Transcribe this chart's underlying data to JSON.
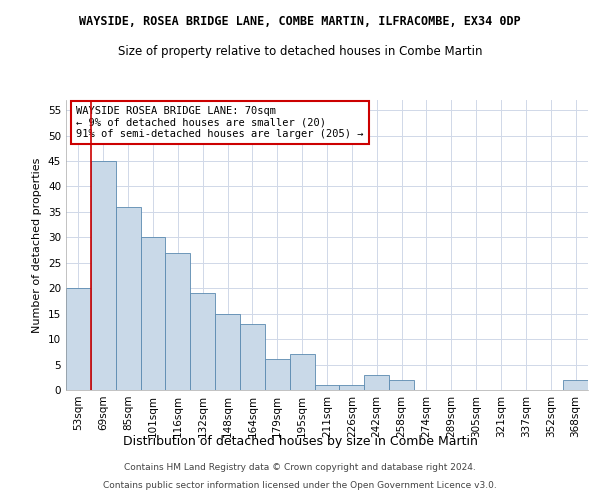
{
  "title": "WAYSIDE, ROSEA BRIDGE LANE, COMBE MARTIN, ILFRACOMBE, EX34 0DP",
  "subtitle": "Size of property relative to detached houses in Combe Martin",
  "xlabel": "Distribution of detached houses by size in Combe Martin",
  "ylabel": "Number of detached properties",
  "categories": [
    "53sqm",
    "69sqm",
    "85sqm",
    "101sqm",
    "116sqm",
    "132sqm",
    "148sqm",
    "164sqm",
    "179sqm",
    "195sqm",
    "211sqm",
    "226sqm",
    "242sqm",
    "258sqm",
    "274sqm",
    "289sqm",
    "305sqm",
    "321sqm",
    "337sqm",
    "352sqm",
    "368sqm"
  ],
  "values": [
    20,
    45,
    36,
    30,
    27,
    19,
    15,
    13,
    6,
    7,
    1,
    1,
    3,
    2,
    0,
    0,
    0,
    0,
    0,
    0,
    2
  ],
  "bar_color": "#c9d9e8",
  "bar_edge_color": "#5a8ab0",
  "ylim": [
    0,
    57
  ],
  "yticks": [
    0,
    5,
    10,
    15,
    20,
    25,
    30,
    35,
    40,
    45,
    50,
    55
  ],
  "vline_x_idx": 1,
  "vline_color": "#cc0000",
  "annotation_text": "WAYSIDE ROSEA BRIDGE LANE: 70sqm\n← 9% of detached houses are smaller (20)\n91% of semi-detached houses are larger (205) →",
  "annotation_box_color": "#ffffff",
  "annotation_box_edge": "#cc0000",
  "footer1": "Contains HM Land Registry data © Crown copyright and database right 2024.",
  "footer2": "Contains public sector information licensed under the Open Government Licence v3.0.",
  "background_color": "#ffffff",
  "grid_color": "#d0d8e8",
  "title_fontsize": 8.5,
  "subtitle_fontsize": 8.5,
  "xlabel_fontsize": 9,
  "ylabel_fontsize": 8,
  "tick_fontsize": 7.5,
  "footer_fontsize": 6.5
}
